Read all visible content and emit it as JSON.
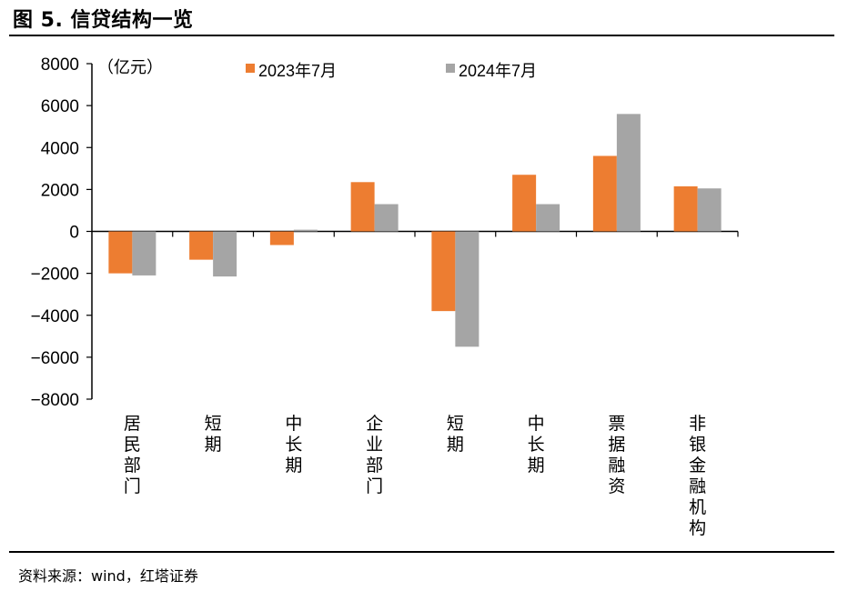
{
  "figure": {
    "title": "图 5. 信贷结构一览",
    "source": "资料来源：wind，红塔证券"
  },
  "chart_data": {
    "type": "bar",
    "unit_label": "（亿元）",
    "categories": [
      "居民部门",
      "短期",
      "中长期",
      "企业部门",
      "短期",
      "中长期",
      "票据融资",
      "非银金融机构"
    ],
    "series": [
      {
        "name": "2023年7月",
        "color": "#ED7D31",
        "values": [
          -2000,
          -1350,
          -650,
          2350,
          -3800,
          2700,
          3600,
          2150
        ]
      },
      {
        "name": "2024年7月",
        "color": "#A5A5A5",
        "values": [
          -2100,
          -2150,
          80,
          1300,
          -5500,
          1300,
          5600,
          2050
        ]
      }
    ],
    "ylim": [
      -8000,
      8000
    ],
    "yticks": [
      "8000",
      "6000",
      "4000",
      "2000",
      "0",
      "−2000",
      "−4000",
      "−6000",
      "−8000"
    ],
    "legend_position": "top",
    "grid": false
  }
}
